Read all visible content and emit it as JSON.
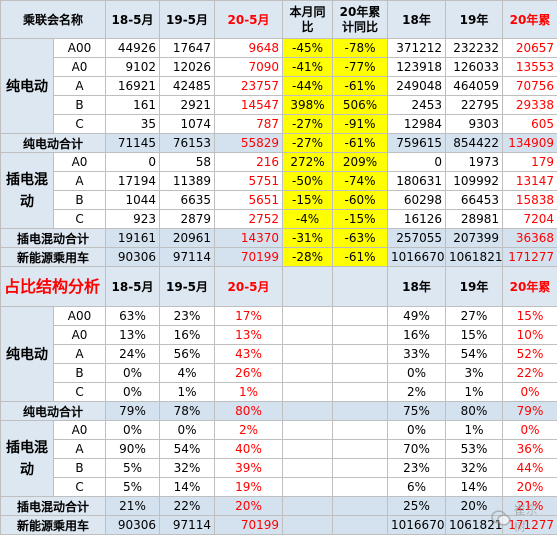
{
  "headers": {
    "name": "乘联会名称",
    "h1": "18-5月",
    "h2": "19-5月",
    "h3": "20-5月",
    "h4": "本月同比",
    "h5": "20年累计同比",
    "h6": "18年",
    "h7": "19年",
    "h8": "20年累"
  },
  "groups": {
    "bev": "纯电动",
    "phev": "插电混动"
  },
  "part1_rows": [
    {
      "label": "A00",
      "v1": "44926",
      "v2": "17647",
      "v3": "9648",
      "v4": "-45%",
      "v5": "-78%",
      "v6": "371212",
      "v7": "232232",
      "v8": "20657"
    },
    {
      "label": "A0",
      "v1": "9102",
      "v2": "12026",
      "v3": "7090",
      "v4": "-41%",
      "v5": "-77%",
      "v6": "123918",
      "v7": "126033",
      "v8": "13553"
    },
    {
      "label": "A",
      "v1": "16921",
      "v2": "42485",
      "v3": "23757",
      "v4": "-44%",
      "v5": "-61%",
      "v6": "249048",
      "v7": "464059",
      "v8": "70756"
    },
    {
      "label": "B",
      "v1": "161",
      "v2": "2921",
      "v3": "14547",
      "v4": "398%",
      "v5": "506%",
      "v6": "2453",
      "v7": "22795",
      "v8": "29338"
    },
    {
      "label": "C",
      "v1": "35",
      "v2": "1074",
      "v3": "787",
      "v4": "-27%",
      "v5": "-91%",
      "v6": "12984",
      "v7": "9303",
      "v8": "605"
    },
    {
      "label": "纯电动合计",
      "v1": "71145",
      "v2": "76153",
      "v3": "55829",
      "v4": "-27%",
      "v5": "-61%",
      "v6": "759615",
      "v7": "854422",
      "v8": "134909"
    },
    {
      "label": "A0",
      "v1": "0",
      "v2": "58",
      "v3": "216",
      "v4": "272%",
      "v5": "209%",
      "v6": "0",
      "v7": "1973",
      "v8": "179"
    },
    {
      "label": "A",
      "v1": "17194",
      "v2": "11389",
      "v3": "5751",
      "v4": "-50%",
      "v5": "-74%",
      "v6": "180631",
      "v7": "109992",
      "v8": "13147"
    },
    {
      "label": "B",
      "v1": "1044",
      "v2": "6635",
      "v3": "5651",
      "v4": "-15%",
      "v5": "-60%",
      "v6": "60298",
      "v7": "66453",
      "v8": "15838"
    },
    {
      "label": "C",
      "v1": "923",
      "v2": "2879",
      "v3": "2752",
      "v4": "-4%",
      "v5": "-15%",
      "v6": "16126",
      "v7": "28981",
      "v8": "7204"
    },
    {
      "label": "插电混动合计",
      "v1": "19161",
      "v2": "20961",
      "v3": "14370",
      "v4": "-31%",
      "v5": "-63%",
      "v6": "257055",
      "v7": "207399",
      "v8": "36368"
    },
    {
      "label": "新能源乘用车",
      "v1": "90306",
      "v2": "97114",
      "v3": "70199",
      "v4": "-28%",
      "v5": "-61%",
      "v6": "1016670",
      "v7": "1061821",
      "v8": "171277"
    }
  ],
  "part2_header": {
    "title": "占比结构分析",
    "h1": "18-5月",
    "h2": "19-5月",
    "h3": "20-5月",
    "h6": "18年",
    "h7": "19年",
    "h8": "20年累"
  },
  "part2_rows": [
    {
      "label": "A00",
      "v1": "63%",
      "v2": "23%",
      "v3": "17%",
      "v6": "49%",
      "v7": "27%",
      "v8": "15%"
    },
    {
      "label": "A0",
      "v1": "13%",
      "v2": "16%",
      "v3": "13%",
      "v6": "16%",
      "v7": "15%",
      "v8": "10%"
    },
    {
      "label": "A",
      "v1": "24%",
      "v2": "56%",
      "v3": "43%",
      "v6": "33%",
      "v7": "54%",
      "v8": "52%"
    },
    {
      "label": "B",
      "v1": "0%",
      "v2": "4%",
      "v3": "26%",
      "v6": "0%",
      "v7": "3%",
      "v8": "22%"
    },
    {
      "label": "C",
      "v1": "0%",
      "v2": "1%",
      "v3": "1%",
      "v6": "2%",
      "v7": "1%",
      "v8": "0%"
    },
    {
      "label": "纯电动合计",
      "v1": "79%",
      "v2": "78%",
      "v3": "80%",
      "v6": "75%",
      "v7": "80%",
      "v8": "79%"
    },
    {
      "label": "A0",
      "v1": "0%",
      "v2": "0%",
      "v3": "2%",
      "v6": "0%",
      "v7": "1%",
      "v8": "0%"
    },
    {
      "label": "A",
      "v1": "90%",
      "v2": "54%",
      "v3": "40%",
      "v6": "70%",
      "v7": "53%",
      "v8": "36%"
    },
    {
      "label": "B",
      "v1": "5%",
      "v2": "32%",
      "v3": "39%",
      "v6": "23%",
      "v7": "32%",
      "v8": "44%"
    },
    {
      "label": "C",
      "v1": "5%",
      "v2": "14%",
      "v3": "19%",
      "v6": "6%",
      "v7": "14%",
      "v8": "20%"
    },
    {
      "label": "插电混动合计",
      "v1": "21%",
      "v2": "22%",
      "v3": "20%",
      "v6": "25%",
      "v7": "20%",
      "v8": "21%"
    },
    {
      "label": "新能源乘用车",
      "v1": "90306",
      "v2": "97114",
      "v3": "70199",
      "v6": "1016670",
      "v7": "1061821",
      "v8": "171277"
    }
  ],
  "watermark": "崔东树",
  "colors": {
    "red": "#ff0000",
    "highlight": "#ffff00",
    "header_bg": "#dde7f1"
  }
}
